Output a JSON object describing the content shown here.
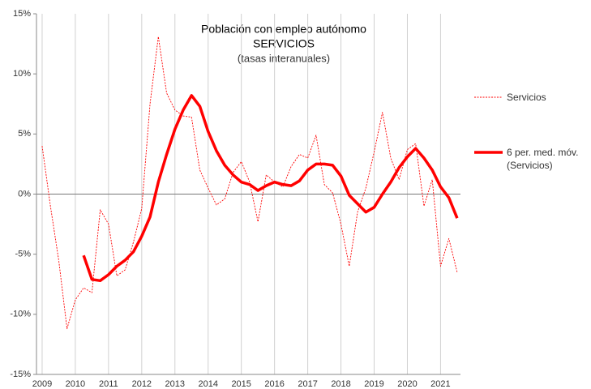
{
  "chart_data": {
    "type": "line",
    "title": "Población con empleo autónomo",
    "subtitle": "SERVICIOS",
    "caption": "(tasas interanuales)",
    "x": [
      2009,
      2009.25,
      2009.5,
      2009.75,
      2010,
      2010.25,
      2010.5,
      2010.75,
      2011,
      2011.25,
      2011.5,
      2011.75,
      2012,
      2012.25,
      2012.5,
      2012.75,
      2013,
      2013.25,
      2013.5,
      2013.75,
      2014,
      2014.25,
      2014.5,
      2014.75,
      2015,
      2015.25,
      2015.5,
      2015.75,
      2016,
      2016.25,
      2016.5,
      2016.75,
      2017,
      2017.25,
      2017.5,
      2017.75,
      2018,
      2018.25,
      2018.5,
      2018.75,
      2019,
      2019.25,
      2019.5,
      2019.75,
      2020,
      2020.25,
      2020.5,
      2020.75,
      2021,
      2021.25,
      2021.5
    ],
    "series": [
      {
        "name": "Servicios",
        "color": "#ff0000",
        "style": "dotted",
        "values": [
          4.0,
          -1,
          -5.5,
          -11.2,
          -8.8,
          -7.8,
          -8.2,
          -1.3,
          -2.5,
          -6.8,
          -6.3,
          -4.0,
          -1.2,
          7.5,
          13.1,
          8.4,
          7.0,
          6.5,
          6.4,
          2.0,
          0.5,
          -0.9,
          -0.4,
          1.8,
          2.7,
          1.0,
          -2.3,
          1.6,
          1.0,
          0.6,
          2.3,
          3.3,
          3.0,
          4.9,
          0.8,
          0.1,
          -2.5,
          -6.0,
          -1.5,
          0.5,
          3.5,
          6.8,
          3.0,
          1.2,
          3.7,
          4.2,
          -1.0,
          1.2,
          -6.0,
          -3.7,
          -6.5
        ]
      },
      {
        "name": "6 per. med. móv. (Servicios)",
        "color": "#ff0000",
        "style": "solid",
        "values": [
          null,
          null,
          null,
          null,
          null,
          -5.1,
          -7.1,
          -7.2,
          -6.7,
          -6.0,
          -5.5,
          -4.8,
          -3.5,
          -1.9,
          1.0,
          3.3,
          5.4,
          7.0,
          8.2,
          7.3,
          5.2,
          3.6,
          2.4,
          1.6,
          1.0,
          0.8,
          0.3,
          0.7,
          1.0,
          0.8,
          0.7,
          1.1,
          2.0,
          2.5,
          2.5,
          2.4,
          1.5,
          -0.1,
          -0.8,
          -1.5,
          -1.1,
          0.0,
          1.0,
          2.2,
          3.1,
          3.8,
          3.0,
          2.0,
          0.6,
          -0.3,
          -2.0
        ]
      }
    ],
    "xlim": [
      2008.83,
      2021.6
    ],
    "xticks": [
      2009,
      2010,
      2011,
      2012,
      2013,
      2014,
      2015,
      2016,
      2017,
      2018,
      2019,
      2020,
      2021
    ],
    "ylim": [
      -15,
      15
    ],
    "yticks": [
      {
        "value": -15,
        "label": "-15%"
      },
      {
        "value": -10,
        "label": "-10%"
      },
      {
        "value": -5,
        "label": "-5%"
      },
      {
        "value": 0,
        "label": "0%"
      },
      {
        "value": 5,
        "label": "5%"
      },
      {
        "value": 10,
        "label": "10%"
      },
      {
        "value": 15,
        "label": "15%"
      }
    ],
    "grid": true,
    "legend": "right"
  }
}
